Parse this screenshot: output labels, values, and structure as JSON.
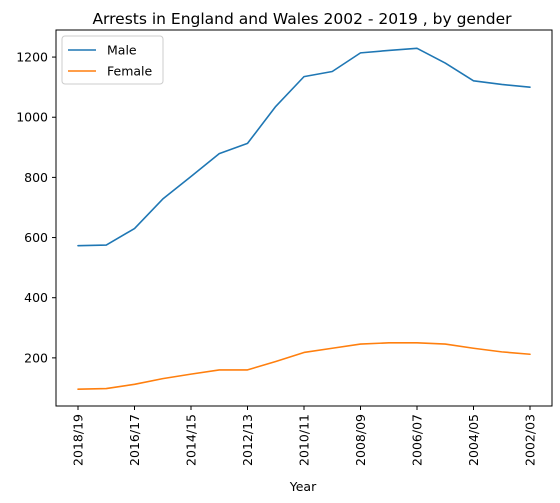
{
  "chart_data": {
    "type": "line",
    "title": "Arrests in England and Wales 2002 - 2019 , by gender",
    "xlabel": "Year",
    "ylabel": "",
    "x": [
      "2018/19",
      "2017/18",
      "2016/17",
      "2015/16",
      "2014/15",
      "2013/14",
      "2012/13",
      "2011/12",
      "2010/11",
      "2009/10",
      "2008/09",
      "2007/08",
      "2006/07",
      "2005/06",
      "2004/05",
      "2003/04",
      "2002/03"
    ],
    "x_tick_labels": [
      "2018/19",
      "2016/17",
      "2014/15",
      "2012/13",
      "2010/11",
      "2008/09",
      "2006/07",
      "2004/05",
      "2002/03"
    ],
    "y_ticks": [
      200,
      400,
      600,
      800,
      1000,
      1200
    ],
    "ylim": [
      40,
      1290
    ],
    "legend": "top-left",
    "grid": false,
    "series": [
      {
        "name": "Male",
        "color": "#1f77b4",
        "values": [
          573,
          575,
          630,
          728,
          803,
          879,
          913,
          1036,
          1135,
          1152,
          1214,
          1222,
          1229,
          1180,
          1121,
          1109,
          1100
        ]
      },
      {
        "name": "Female",
        "color": "#ff7f0e",
        "values": [
          96,
          98,
          112,
          131,
          146,
          160,
          160,
          188,
          218,
          232,
          246,
          250,
          250,
          246,
          232,
          220,
          212
        ]
      }
    ]
  }
}
